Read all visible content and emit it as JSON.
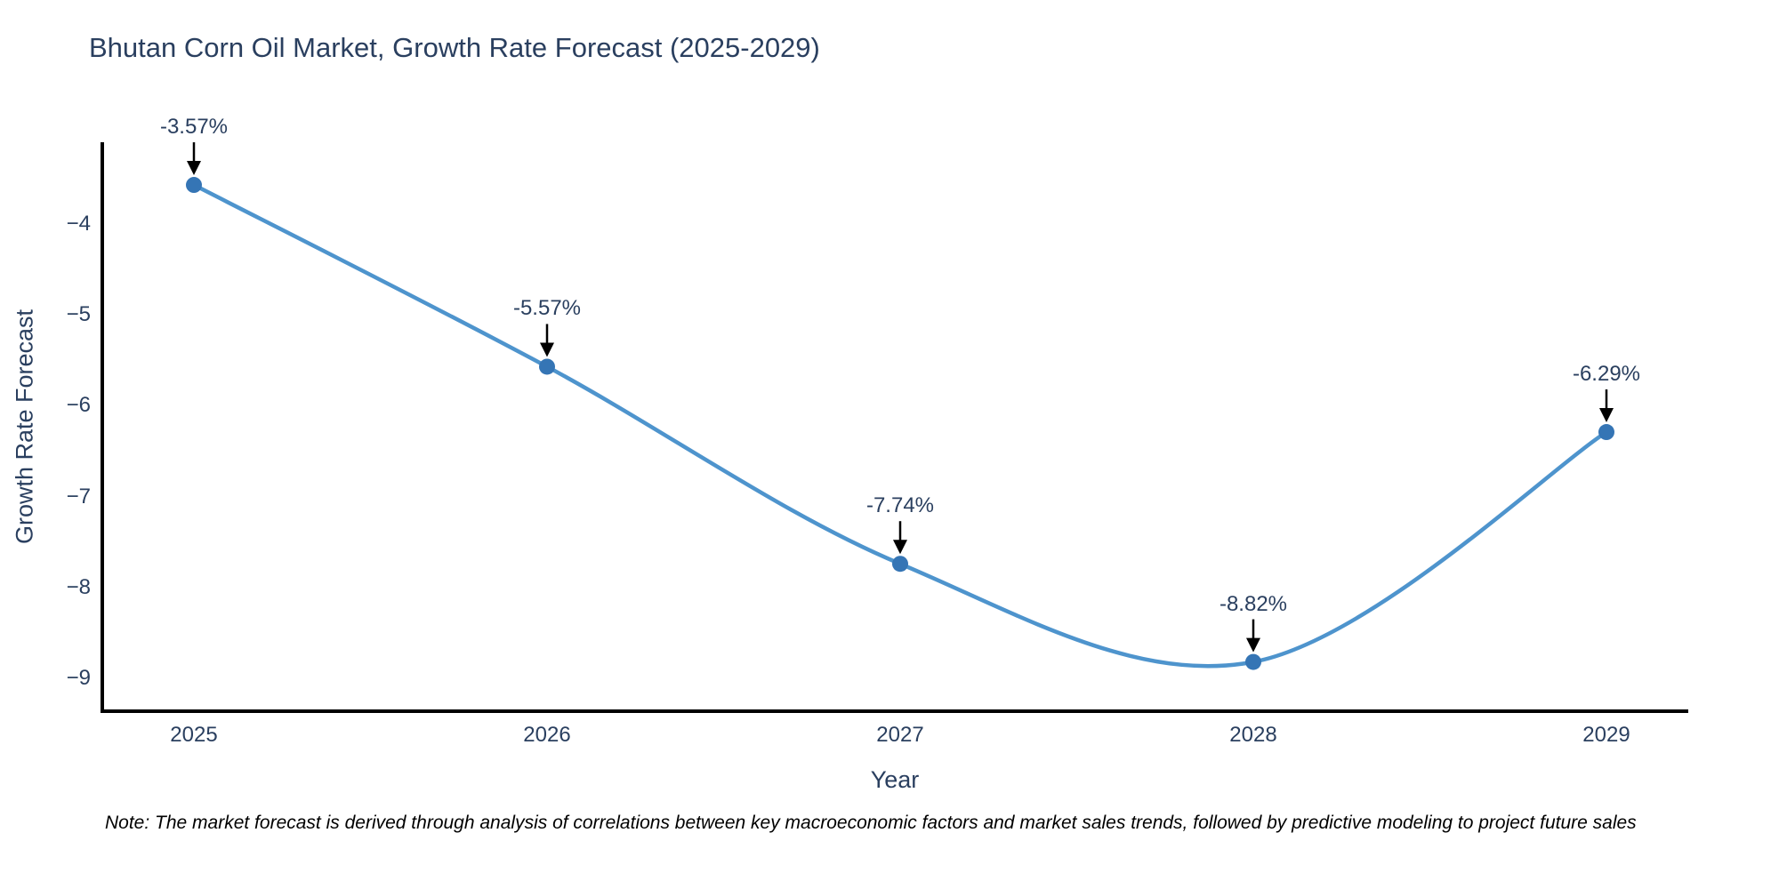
{
  "title": "Bhutan Corn Oil Market, Growth Rate Forecast (2025-2029)",
  "note": "Note: The market forecast is derived through analysis of correlations between key macroeconomic factors and market sales trends, followed by predictive modeling to project future sales",
  "colors": {
    "line": "#4e94cd",
    "marker": "#3575b5",
    "axis_spine": "#000000",
    "text": "#2a3f5f",
    "annotation_arrow": "#000000",
    "background": "#ffffff"
  },
  "chart_data": {
    "type": "line",
    "line_shape": "spline",
    "title": "Bhutan Corn Oil Market, Growth Rate Forecast (2025-2029)",
    "xlabel": "Year",
    "ylabel": "Growth Rate Forecast",
    "x": [
      2025,
      2026,
      2027,
      2028,
      2029
    ],
    "series": [
      {
        "name": "Growth Rate Forecast",
        "values": [
          -3.57,
          -5.57,
          -7.74,
          -8.82,
          -6.29
        ]
      }
    ],
    "point_labels": [
      "-3.57%",
      "-5.57%",
      "-7.74%",
      "-8.82%",
      "-6.29%"
    ],
    "xticks": [
      "2025",
      "2026",
      "2027",
      "2028",
      "2029"
    ],
    "yticks": [
      -4,
      -5,
      -6,
      -7,
      -8,
      -9
    ],
    "ytick_labels": [
      "−4",
      "−5",
      "−6",
      "−7",
      "−8",
      "−9"
    ],
    "xlim": [
      2024.74,
      2029.23
    ],
    "ylim": [
      -9.36,
      -3.1
    ],
    "grid": false,
    "legend": "none",
    "annotations_have_arrows": true
  }
}
